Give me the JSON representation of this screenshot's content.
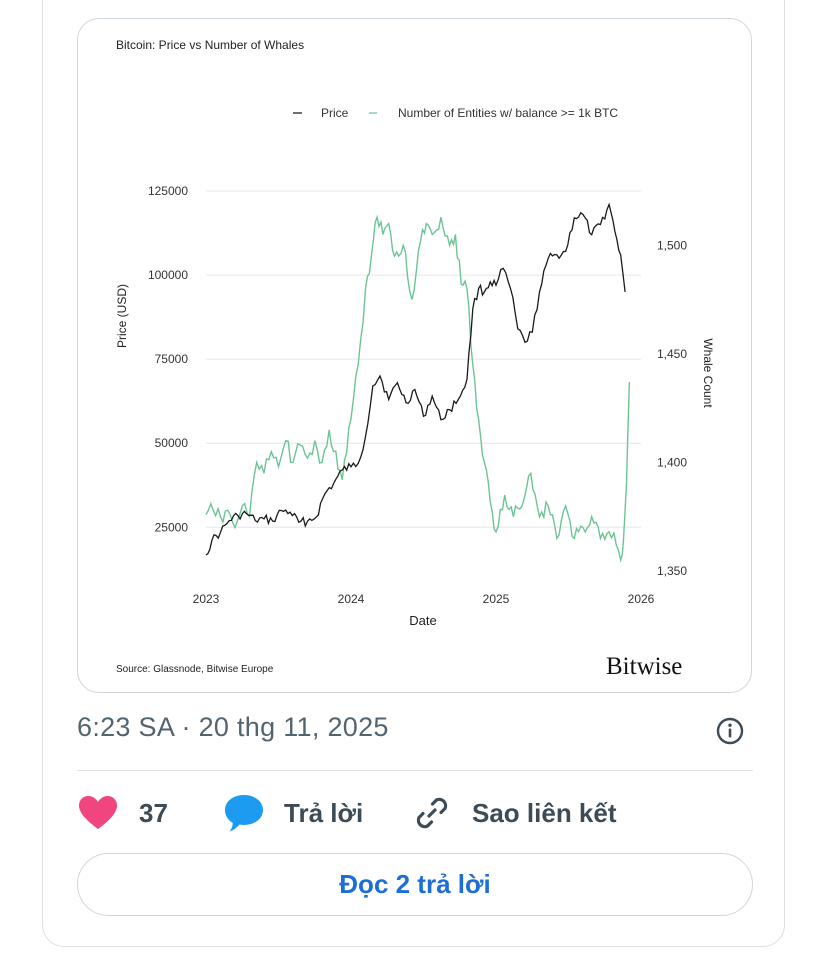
{
  "tweet": {
    "timestamp": "6:23 SA · 20 thg 11, 2025",
    "info_icon": "info-icon"
  },
  "actions": {
    "like_count": "37",
    "reply_label": "Trả lời",
    "copy_link_label": "Sao liên kết",
    "read_replies_label": "Đọc 2 trả lời",
    "like_color": "#f0457f",
    "reply_color": "#1d9bf0"
  },
  "chart_data": {
    "type": "line",
    "title": "Bitcoin: Price vs Number of Whales",
    "xlabel": "Date",
    "ylabel": "Price (USD)",
    "y2label": "Whale Count",
    "source": "Source: Glassnode, Bitwise Europe",
    "brand": "Bitwise",
    "legend_position": "top",
    "grid": "horizontal",
    "xlim": [
      2023.0,
      2026.0
    ],
    "ylim": [
      12000,
      125000
    ],
    "y2lim": [
      1350,
      1525
    ],
    "x_ticks": [
      "2023",
      "2024",
      "2025",
      "2026"
    ],
    "y_ticks": [
      "25000",
      "50000",
      "75000",
      "100000",
      "125000"
    ],
    "y2_ticks": [
      "1,350",
      "1,400",
      "1,450",
      "1,500"
    ],
    "series": [
      {
        "name": "Price",
        "axis": "left",
        "color": "#1a1a1a",
        "x": [
          2023.0,
          2023.04,
          2023.1,
          2023.16,
          2023.22,
          2023.28,
          2023.34,
          2023.4,
          2023.46,
          2023.52,
          2023.58,
          2023.64,
          2023.7,
          2023.76,
          2023.82,
          2023.88,
          2023.94,
          2024.0,
          2024.05,
          2024.1,
          2024.15,
          2024.2,
          2024.26,
          2024.32,
          2024.38,
          2024.44,
          2024.5,
          2024.56,
          2024.62,
          2024.68,
          2024.74,
          2024.8,
          2024.84,
          2024.88,
          2024.92,
          2024.96,
          2025.0,
          2025.05,
          2025.1,
          2025.15,
          2025.2,
          2025.25,
          2025.3,
          2025.36,
          2025.42,
          2025.48,
          2025.54,
          2025.6,
          2025.66,
          2025.72,
          2025.78,
          2025.82,
          2025.86,
          2025.89
        ],
        "values": [
          16800,
          21000,
          23500,
          27000,
          28500,
          29000,
          27000,
          27500,
          26800,
          30000,
          29500,
          26500,
          26800,
          28000,
          35000,
          38000,
          42000,
          43000,
          44000,
          52000,
          67000,
          70000,
          63000,
          68000,
          62000,
          66000,
          58000,
          64000,
          57000,
          60000,
          63000,
          69000,
          90000,
          96000,
          95000,
          98000,
          97000,
          102000,
          96000,
          84000,
          80000,
          83000,
          95000,
          105000,
          106000,
          107000,
          117000,
          118000,
          112000,
          115000,
          121000,
          113000,
          106000,
          95000
        ]
      },
      {
        "name": "Number of Entities w/ balance >= 1k BTC",
        "axis": "right",
        "color": "#6cc495",
        "x": [
          2023.0,
          2023.05,
          2023.1,
          2023.15,
          2023.2,
          2023.25,
          2023.3,
          2023.35,
          2023.4,
          2023.45,
          2023.5,
          2023.55,
          2023.6,
          2023.65,
          2023.7,
          2023.75,
          2023.8,
          2023.85,
          2023.88,
          2023.94,
          2024.0,
          2024.05,
          2024.1,
          2024.14,
          2024.18,
          2024.22,
          2024.26,
          2024.3,
          2024.36,
          2024.42,
          2024.48,
          2024.52,
          2024.56,
          2024.62,
          2024.68,
          2024.72,
          2024.76,
          2024.8,
          2024.84,
          2024.88,
          2024.92,
          2024.96,
          2025.0,
          2025.06,
          2025.12,
          2025.18,
          2025.24,
          2025.3,
          2025.36,
          2025.42,
          2025.48,
          2025.54,
          2025.6,
          2025.66,
          2025.72,
          2025.78,
          2025.83,
          2025.86,
          2025.88,
          2025.9,
          2025.92
        ],
        "values": [
          1376,
          1378,
          1375,
          1378,
          1370,
          1380,
          1375,
          1400,
          1395,
          1405,
          1398,
          1410,
          1400,
          1408,
          1402,
          1410,
          1400,
          1415,
          1405,
          1392,
          1420,
          1445,
          1480,
          1495,
          1513,
          1505,
          1510,
          1495,
          1500,
          1475,
          1502,
          1510,
          1505,
          1513,
          1500,
          1505,
          1482,
          1480,
          1445,
          1420,
          1400,
          1382,
          1368,
          1385,
          1375,
          1380,
          1395,
          1375,
          1380,
          1365,
          1380,
          1365,
          1370,
          1375,
          1365,
          1368,
          1362,
          1355,
          1365,
          1390,
          1437
        ]
      }
    ]
  }
}
